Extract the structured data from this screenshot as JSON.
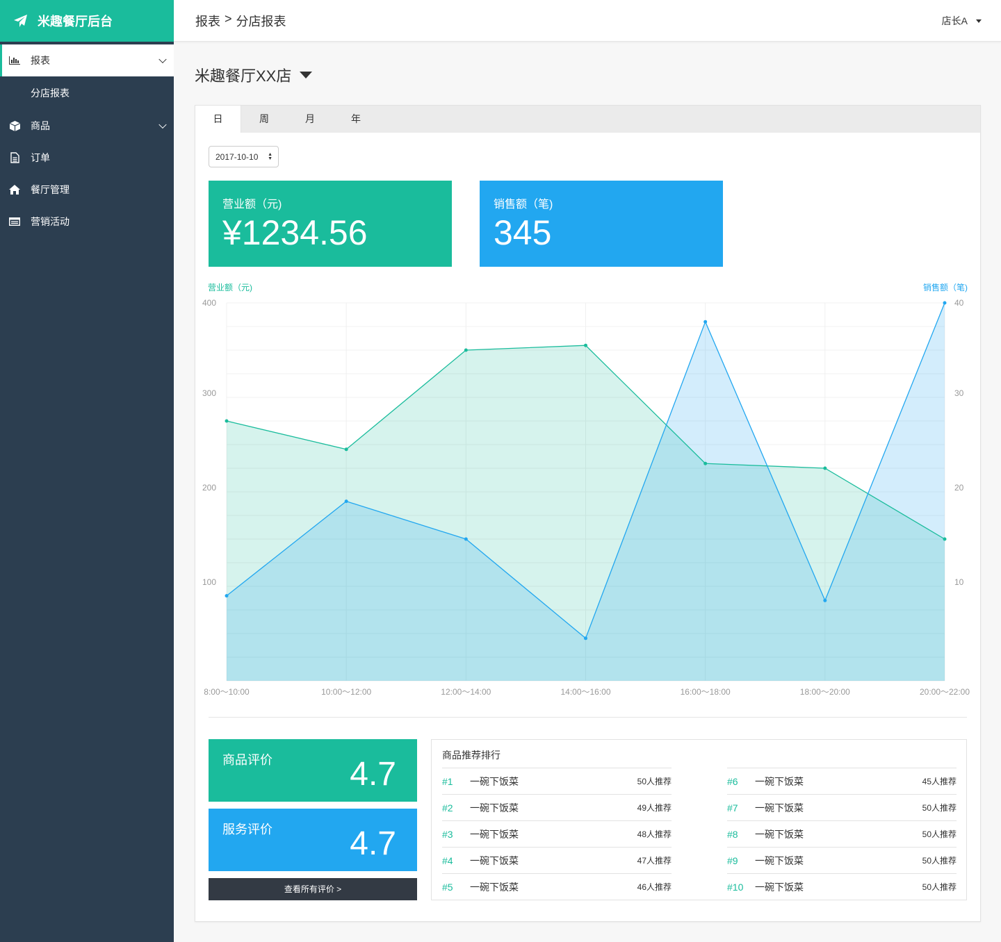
{
  "brand": {
    "name": "米趣餐厅后台",
    "color": "#1abc9c"
  },
  "sidebar": {
    "items": [
      {
        "label": "报表",
        "icon": "bar-chart-icon",
        "active": true,
        "expandable": true
      },
      {
        "label": "商品",
        "icon": "cube-icon",
        "expandable": true
      },
      {
        "label": "订单",
        "icon": "document-icon"
      },
      {
        "label": "餐厅管理",
        "icon": "home-icon"
      },
      {
        "label": "营销活动",
        "icon": "list-icon"
      }
    ],
    "subitems": [
      {
        "label": "分店报表"
      }
    ]
  },
  "header": {
    "breadcrumb": [
      "报表",
      ">",
      "分店报表"
    ],
    "user": "店长A"
  },
  "main": {
    "store": "米趣餐厅XX店",
    "tabs": [
      "日",
      "周",
      "月",
      "年"
    ],
    "active_tab": "日",
    "date": "2017-10-10",
    "stats": [
      {
        "label": "营业额（元)",
        "value": "¥1234.56",
        "color": "#1abc9c"
      },
      {
        "label": "销售额（笔)",
        "value": "345",
        "color": "#22a7f0"
      }
    ],
    "ratings": [
      {
        "label": "商品评价",
        "value": "4.7"
      },
      {
        "label": "服务评价",
        "value": "4.7"
      }
    ],
    "view_all": "查看所有评价 >",
    "ranking": {
      "title": "商品推荐排行",
      "items": [
        {
          "rank": "#1",
          "name": "一碗下饭菜",
          "count": "50人推荐"
        },
        {
          "rank": "#2",
          "name": "一碗下饭菜",
          "count": "49人推荐"
        },
        {
          "rank": "#3",
          "name": "一碗下饭菜",
          "count": "48人推荐"
        },
        {
          "rank": "#4",
          "name": "一碗下饭菜",
          "count": "47人推荐"
        },
        {
          "rank": "#5",
          "name": "一碗下饭菜",
          "count": "46人推荐"
        },
        {
          "rank": "#6",
          "name": "一碗下饭菜",
          "count": "45人推荐"
        },
        {
          "rank": "#7",
          "name": "一碗下饭菜",
          "count": "50人推荐"
        },
        {
          "rank": "#8",
          "name": "一碗下饭菜",
          "count": "50人推荐"
        },
        {
          "rank": "#9",
          "name": "一碗下饭菜",
          "count": "50人推荐"
        },
        {
          "rank": "#10",
          "name": "一碗下饭菜",
          "count": "50人推荐"
        }
      ]
    }
  },
  "chart_data": {
    "type": "area",
    "categories": [
      "8:00～10:00",
      "10:00～12:00",
      "12:00～14:00",
      "14:00～16:00",
      "16:00～18:00",
      "18:00～20:00",
      "20:00～22:00"
    ],
    "series": [
      {
        "name": "营业额（元)",
        "axis": "left",
        "color": "#1abc9c",
        "values": [
          275,
          245,
          350,
          355,
          230,
          225,
          150
        ]
      },
      {
        "name": "销售额（笔)",
        "axis": "right",
        "color": "#22a7f0",
        "values": [
          9,
          19,
          15,
          4.5,
          38,
          8.5,
          40
        ]
      }
    ],
    "ylabel": "营业额（元)",
    "y2label": "销售额（笔)",
    "ylim": [
      0,
      400
    ],
    "y2lim": [
      0,
      40
    ],
    "yticks": [
      100,
      200,
      300,
      400
    ],
    "y2ticks": [
      10,
      20,
      30,
      40
    ],
    "grid": true
  }
}
